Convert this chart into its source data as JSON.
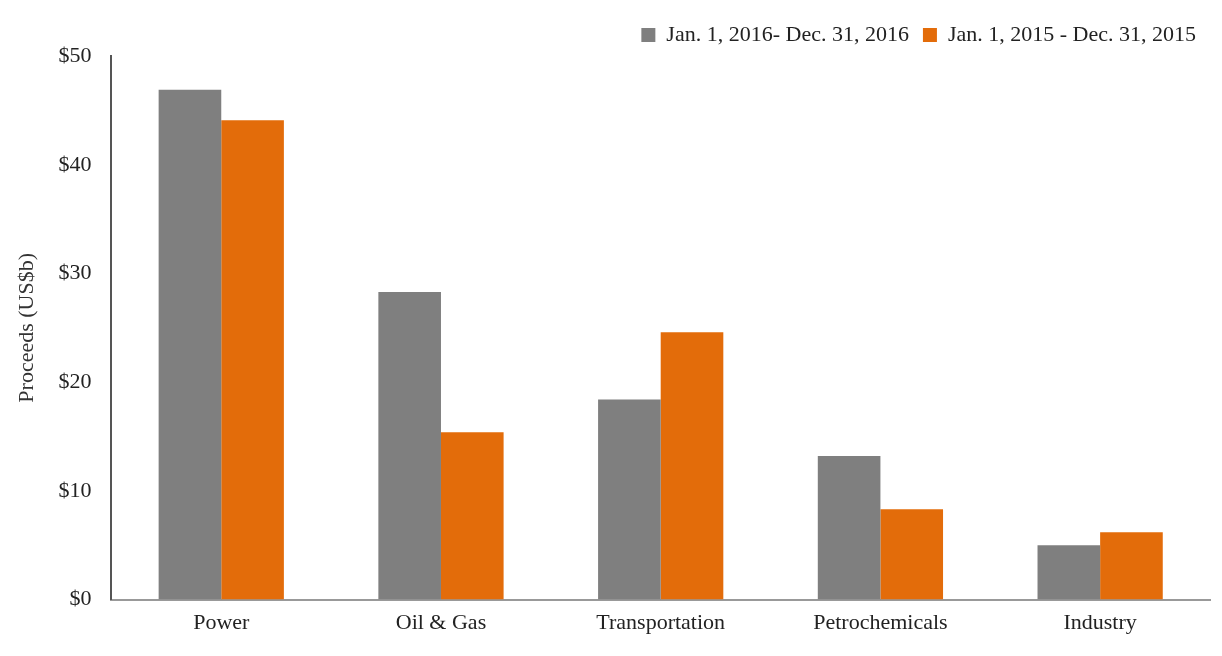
{
  "chart_data": {
    "type": "bar",
    "ylabel": "Proceeds (US$b)",
    "categories": [
      "Power",
      "Oil & Gas",
      "Transportation",
      "Petrochemicals",
      "Industry"
    ],
    "series": [
      {
        "name": "Jan. 1, 2016- Dec. 31, 2016",
        "color": "#7f7f7f",
        "values": [
          46.9,
          28.3,
          18.4,
          13.2,
          5.0
        ]
      },
      {
        "name": "Jan. 1, 2015 - Dec. 31, 2015",
        "color": "#e36c0a",
        "values": [
          44.1,
          15.4,
          24.6,
          8.3,
          6.2
        ]
      }
    ],
    "ylim": [
      0,
      50
    ],
    "yticks": [
      {
        "value": 0,
        "label": "$0"
      },
      {
        "value": 10,
        "label": "$10"
      },
      {
        "value": 20,
        "label": "$20"
      },
      {
        "value": 30,
        "label": "$30"
      },
      {
        "value": 40,
        "label": "$40"
      },
      {
        "value": 50,
        "label": "$50"
      }
    ],
    "grid": false,
    "legend": "top right"
  }
}
